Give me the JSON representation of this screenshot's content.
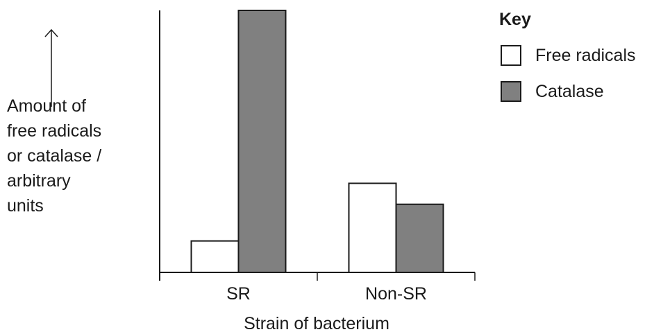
{
  "chart_data": {
    "type": "bar",
    "categories": [
      "SR",
      "Non-SR"
    ],
    "series": [
      {
        "name": "Free radicals",
        "values": [
          12,
          34
        ],
        "color": "#ffffff"
      },
      {
        "name": "Catalase",
        "values": [
          100,
          26
        ],
        "color": "#808080"
      }
    ],
    "xlabel": "Strain of bacterium",
    "ylabel": "Amount of\nfree radicals\nor catalase /\narbitrary\nunits",
    "ylim": [
      0,
      100
    ],
    "y_ticks_shown": false,
    "grid": false,
    "legend": {
      "title": "Key",
      "placement": "top-right"
    }
  }
}
